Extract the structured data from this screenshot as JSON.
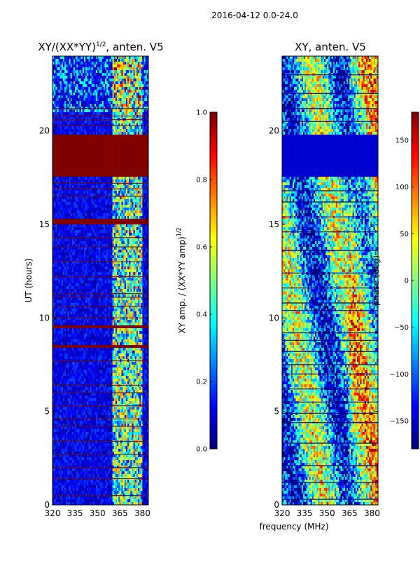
{
  "chart_data": [
    {
      "type": "heatmap",
      "suptitle": "2016-04-12 0.0-24.0",
      "title_main": "XY/(XX*YY)",
      "title_exp": "1/2",
      "title_tail": ", anten. V5",
      "xlabel": "",
      "ylabel": "UT (hours)",
      "xlim": [
        320,
        384
      ],
      "ylim": [
        0,
        24
      ],
      "xticks": [
        320,
        335,
        350,
        365,
        380
      ],
      "yticks": [
        0,
        5,
        10,
        15,
        20
      ],
      "colormap": "jet",
      "colorbar": {
        "label_main": "XY amp. / (XX*YY amp)",
        "label_exp": "1/2",
        "range": [
          0.0,
          1.0
        ],
        "ticks": [
          "0.0",
          "0.2",
          "0.4",
          "0.6",
          "0.8",
          "1.0"
        ],
        "tick_values": [
          0.0,
          0.2,
          0.4,
          0.6,
          0.8,
          1.0
        ]
      },
      "bright_freq_band_mhz": [
        360,
        380
      ],
      "saturated_intervals_hours": [
        [
          17.6,
          19.8
        ],
        [
          15.0,
          15.3
        ],
        [
          9.45,
          9.6
        ],
        [
          8.45,
          8.6
        ]
      ],
      "horizontal_red_lines_hours": [
        0.5,
        1.4,
        2.0,
        2.7,
        3.4,
        4.2,
        4.6,
        5.3,
        6.0,
        6.4,
        7.7,
        10.0,
        10.6,
        11.1,
        11.3,
        12.2,
        13.0,
        13.8,
        14.3,
        16.5,
        16.9,
        17.2,
        20.3,
        20.6,
        20.8,
        21.2
      ]
    },
    {
      "type": "heatmap",
      "title": "XY, anten. V5",
      "xlabel": "frequency (MHz)",
      "ylabel": "",
      "xlim": [
        320,
        384
      ],
      "ylim": [
        0,
        24
      ],
      "xticks": [
        320,
        335,
        350,
        365,
        380
      ],
      "yticks": [
        0,
        5,
        10,
        15,
        20
      ],
      "colormap": "jet",
      "colorbar": {
        "label": "phase (deg)",
        "range": [
          -180,
          180
        ],
        "ticks": [
          "−150",
          "−100",
          "−50",
          "0",
          "50",
          "100",
          "150"
        ],
        "tick_values": [
          -150,
          -100,
          -50,
          0,
          50,
          100,
          150
        ]
      },
      "flagged_interval_hours": [
        17.6,
        19.8
      ],
      "horizontal_dark_lines_hours": [
        0.3,
        1.2,
        2.1,
        3.3,
        4.4,
        4.9,
        5.5,
        6.2,
        7.0,
        7.5,
        8.2,
        8.8,
        9.2,
        10.4,
        10.8,
        11.6,
        12.4,
        13.6,
        14.6,
        15.4,
        16.2,
        16.8,
        20.5,
        21.2,
        22.0,
        23.0
      ]
    }
  ]
}
